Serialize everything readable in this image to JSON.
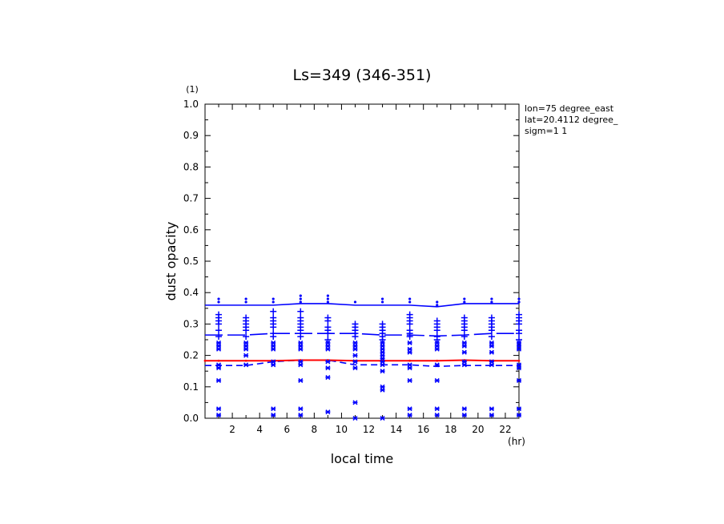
{
  "chart_data": {
    "type": "line",
    "title": "Ls=349 (346-351)",
    "xlabel": "local time",
    "ylabel": "dust opacity",
    "x_unit": "(hr)",
    "y_unit": "(1)",
    "xlim": [
      0,
      23
    ],
    "ylim": [
      0,
      1.0
    ],
    "x_ticks": [
      2,
      4,
      6,
      8,
      10,
      12,
      14,
      16,
      18,
      20,
      22
    ],
    "y_ticks": [
      0.0,
      0.1,
      0.2,
      0.3,
      0.4,
      0.5,
      0.6,
      0.7,
      0.8,
      0.9,
      1.0
    ],
    "y_tick_labels": [
      "0.0",
      "0.1",
      "0.2",
      "0.3",
      "0.4",
      "0.5",
      "0.6",
      "0.7",
      "0.8",
      "0.9",
      "1.0"
    ],
    "annotations": [
      "lon=75 degree_east",
      "lat=20.4112 degree_",
      "sigm=1 1"
    ],
    "colors": {
      "blue": "#0000ff",
      "red": "#ff0000",
      "axis": "#000000"
    },
    "series": [
      {
        "style": "solid",
        "color": "#0000ff",
        "x": [
          0,
          1,
          3,
          5,
          7,
          9,
          11,
          13,
          15,
          17,
          19,
          21,
          23
        ],
        "y": [
          0.36,
          0.36,
          0.36,
          0.36,
          0.365,
          0.365,
          0.36,
          0.36,
          0.36,
          0.355,
          0.365,
          0.365,
          0.365
        ]
      },
      {
        "style": "long-dash",
        "color": "#0000ff",
        "x": [
          0,
          1,
          3,
          5,
          7,
          9,
          11,
          13,
          15,
          17,
          19,
          21,
          23
        ],
        "y": [
          0.265,
          0.265,
          0.265,
          0.27,
          0.27,
          0.27,
          0.27,
          0.265,
          0.265,
          0.262,
          0.265,
          0.27,
          0.27
        ]
      },
      {
        "style": "dash",
        "color": "#0000ff",
        "x": [
          0,
          1,
          3,
          5,
          7,
          9,
          11,
          13,
          15,
          17,
          19,
          21,
          23
        ],
        "y": [
          0.168,
          0.168,
          0.168,
          0.18,
          0.185,
          0.185,
          0.17,
          0.17,
          0.17,
          0.165,
          0.168,
          0.168,
          0.168
        ]
      },
      {
        "style": "solid",
        "color": "#ff0000",
        "x": [
          0,
          1,
          3,
          5,
          7,
          9,
          11,
          13,
          15,
          17,
          19,
          21,
          23
        ],
        "y": [
          0.183,
          0.183,
          0.183,
          0.183,
          0.185,
          0.185,
          0.183,
          0.183,
          0.183,
          0.183,
          0.185,
          0.183,
          0.183
        ]
      }
    ],
    "scatter": {
      "x": [
        1,
        3,
        5,
        7,
        9,
        11,
        13,
        15,
        17,
        19,
        21,
        23
      ],
      "star_y": [
        [
          0.01,
          0.03,
          0.12,
          0.16,
          0.17,
          0.22,
          0.23,
          0.24
        ],
        [
          0.17,
          0.2,
          0.22,
          0.23,
          0.24
        ],
        [
          0.01,
          0.03,
          0.17,
          0.18,
          0.22,
          0.23,
          0.24
        ],
        [
          0.01,
          0.03,
          0.12,
          0.17,
          0.18,
          0.22,
          0.23,
          0.24
        ],
        [
          0.02,
          0.13,
          0.16,
          0.18,
          0.22,
          0.23,
          0.24
        ],
        [
          0.0,
          0.05,
          0.16,
          0.18,
          0.2,
          0.22,
          0.23,
          0.24
        ],
        [
          0.0,
          0.09,
          0.1,
          0.15,
          0.17,
          0.18,
          0.19,
          0.2,
          0.21,
          0.22,
          0.23,
          0.24
        ],
        [
          0.01,
          0.03,
          0.12,
          0.16,
          0.17,
          0.21,
          0.22,
          0.24
        ],
        [
          0.01,
          0.03,
          0.12,
          0.17,
          0.22,
          0.23,
          0.24
        ],
        [
          0.01,
          0.03,
          0.17,
          0.18,
          0.21,
          0.23,
          0.24
        ],
        [
          0.01,
          0.03,
          0.17,
          0.18,
          0.21,
          0.23,
          0.24
        ],
        [
          0.01,
          0.03,
          0.12,
          0.16,
          0.17,
          0.22,
          0.23,
          0.24
        ]
      ],
      "plus_y": [
        [
          0.26,
          0.28,
          0.3,
          0.31,
          0.32,
          0.33
        ],
        [
          0.26,
          0.28,
          0.29,
          0.3,
          0.31,
          0.32
        ],
        [
          0.26,
          0.27,
          0.29,
          0.3,
          0.31,
          0.32,
          0.34
        ],
        [
          0.26,
          0.28,
          0.29,
          0.3,
          0.31,
          0.32,
          0.34
        ],
        [
          0.25,
          0.27,
          0.28,
          0.29,
          0.31,
          0.32
        ],
        [
          0.26,
          0.27,
          0.28,
          0.29,
          0.3
        ],
        [
          0.25,
          0.26,
          0.27,
          0.28,
          0.29,
          0.3
        ],
        [
          0.26,
          0.27,
          0.28,
          0.3,
          0.31,
          0.32,
          0.33
        ],
        [
          0.25,
          0.26,
          0.28,
          0.29,
          0.3,
          0.31
        ],
        [
          0.26,
          0.28,
          0.29,
          0.3,
          0.31,
          0.32
        ],
        [
          0.26,
          0.28,
          0.29,
          0.3,
          0.31,
          0.32
        ],
        [
          0.25,
          0.27,
          0.28,
          0.3,
          0.31,
          0.32,
          0.33
        ]
      ],
      "dot_y": [
        [
          0.37,
          0.38
        ],
        [
          0.37,
          0.38
        ],
        [
          0.37,
          0.38
        ],
        [
          0.37,
          0.38,
          0.39
        ],
        [
          0.37,
          0.38,
          0.39
        ],
        [
          0.37
        ],
        [
          0.37,
          0.38
        ],
        [
          0.37,
          0.38
        ],
        [
          0.36,
          0.37
        ],
        [
          0.37,
          0.38
        ],
        [
          0.37,
          0.38
        ],
        [
          0.37,
          0.38
        ]
      ]
    }
  }
}
